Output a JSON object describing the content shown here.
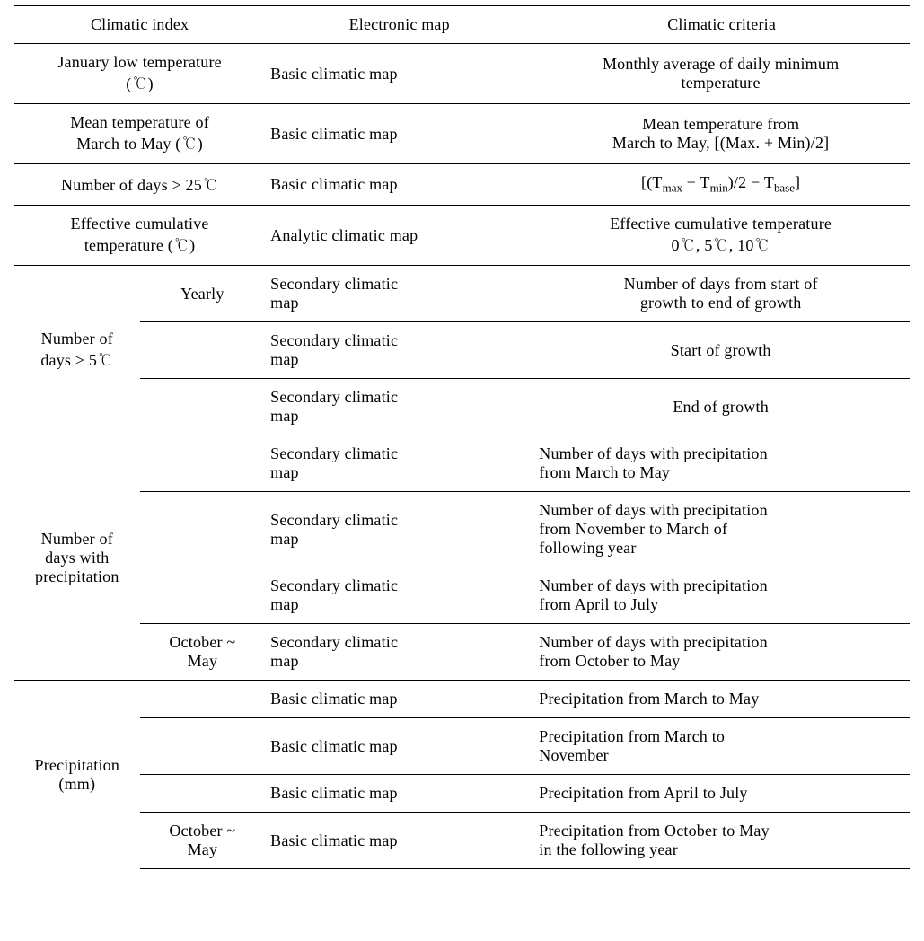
{
  "table": {
    "headers": {
      "col1": "Climatic index",
      "col2": "Electronic map",
      "col3": "Climatic criteria"
    },
    "rows": {
      "r1": {
        "index": "January low temperature\n(℃)",
        "map": "Basic climatic map",
        "criteria": "Monthly average of daily minimum\ntemperature"
      },
      "r2": {
        "index": "Mean temperature of\nMarch to May (℃)",
        "map": "Basic climatic map",
        "criteria": "Mean temperature from\nMarch to May, [(Max. + Min)/2]"
      },
      "r3": {
        "index": "Number of days > 25℃",
        "map": "Basic climatic map",
        "criteria_prefix": "[(T",
        "criteria_tmax": "max",
        "criteria_mid1": " − T",
        "criteria_tmin": "min",
        "criteria_mid2": ")/2 − T",
        "criteria_tbase": "base",
        "criteria_suffix": "]"
      },
      "r4": {
        "index": "Effective cumulative\ntemperature (℃)",
        "map": "Analytic climatic map",
        "criteria": "Effective cumulative temperature\n0℃, 5℃, 10℃"
      },
      "r5_group": {
        "index": "Number of\ndays > 5℃",
        "sub1_label": "Yearly",
        "sub1_map": "Secondary climatic\nmap",
        "sub1_criteria": "Number of days from start of\ngrowth to end of growth",
        "sub2_map": "Secondary climatic\nmap",
        "sub2_criteria": "Start of growth",
        "sub3_map": "Secondary climatic\nmap",
        "sub3_criteria": "End of growth"
      },
      "r6_group": {
        "index": "Number of\ndays with\nprecipitation",
        "sub1_map": "Secondary climatic\nmap",
        "sub1_criteria": "Number of days with precipitation\nfrom March to May",
        "sub2_map": "Secondary climatic\nmap",
        "sub2_criteria": "Number of days with precipitation\nfrom November to March of\nfollowing year",
        "sub3_map": "Secondary climatic\nmap",
        "sub3_criteria": "Number of days with precipitation\nfrom April to July",
        "sub4_label": "October  ~\nMay",
        "sub4_map": "Secondary climatic\nmap",
        "sub4_criteria": "Number of days with precipitation\nfrom October to May"
      },
      "r7_group": {
        "index": "Precipitation\n(mm)",
        "sub1_map": "Basic climatic map",
        "sub1_criteria": "Precipitation from March to May",
        "sub2_map": "Basic climatic map",
        "sub2_criteria": "Precipitation from March to\nNovember",
        "sub3_map": "Basic climatic map",
        "sub3_criteria": "Precipitation from April to July",
        "sub4_label": "October ~\nMay",
        "sub4_map": "Basic climatic map",
        "sub4_criteria": "Precipitation from October to May\nin the following year"
      }
    }
  }
}
